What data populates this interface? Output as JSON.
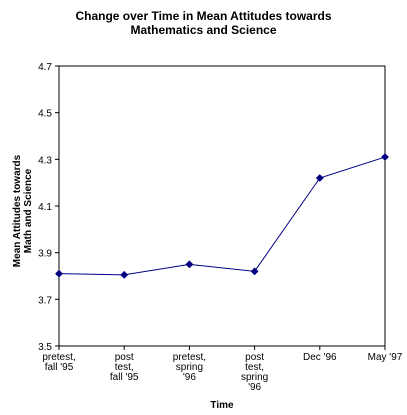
{
  "chart_data": {
    "type": "line",
    "title": [
      "Change over Time in Mean Attitudes towards",
      "Mathematics and Science"
    ],
    "xlabel": "Time",
    "ylabel": [
      "Mean Attitudes towards",
      "Math and Science"
    ],
    "categories": [
      [
        "pretest,",
        "fall '95"
      ],
      [
        "post",
        "test,",
        "fall '95"
      ],
      [
        "pretest,",
        "spring",
        "'96"
      ],
      [
        "post",
        "test,",
        "spring",
        "'96"
      ],
      [
        "Dec '96"
      ],
      [
        "May '97"
      ]
    ],
    "series": [
      {
        "values": [
          3.81,
          3.805,
          3.85,
          3.82,
          4.22,
          4.31
        ]
      }
    ],
    "ylim": [
      3.5,
      4.7
    ],
    "yticks": [
      "3.5",
      "3.7",
      "3.9",
      "4.1",
      "4.3",
      "4.5",
      "4.7"
    ],
    "grid": false,
    "legend": "none",
    "colors": {
      "line": "#000080",
      "marker": "#000080",
      "axis": "#000000"
    }
  }
}
